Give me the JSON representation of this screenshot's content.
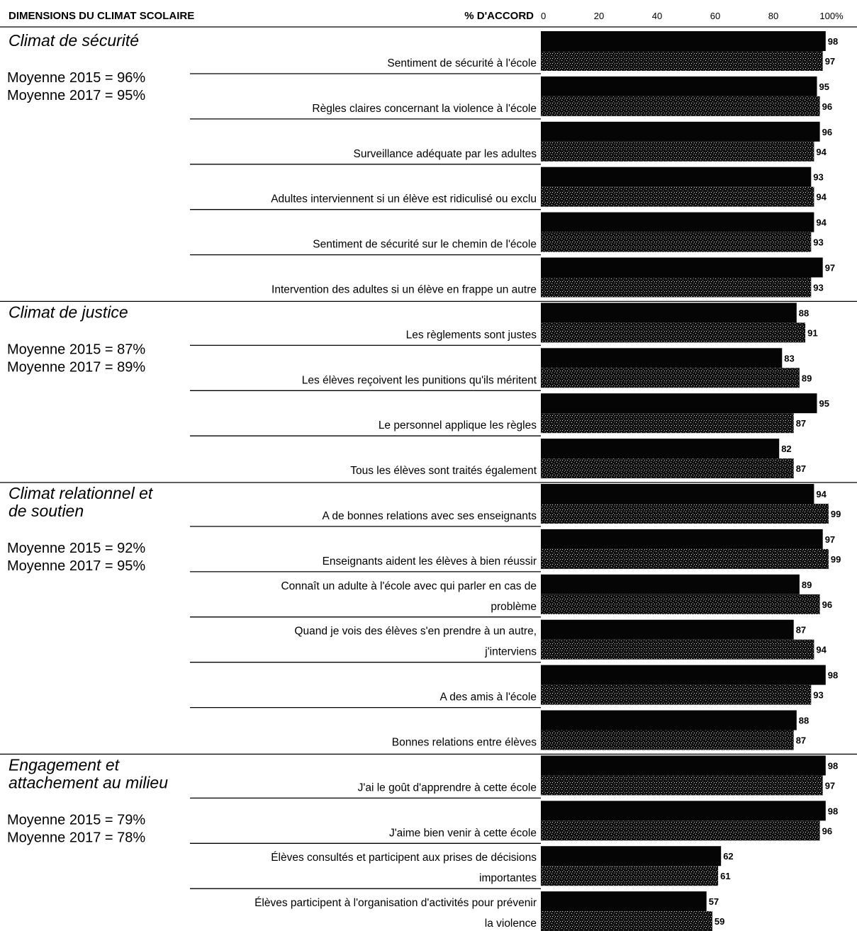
{
  "chart_data": {
    "type": "bar",
    "orientation": "horizontal",
    "title": "DIMENSIONS DU CLIMAT SCOLAIRE",
    "xlabel": "% D'ACCORD",
    "xlim": [
      0,
      100
    ],
    "xticks": [
      "0",
      "20",
      "40",
      "60",
      "80",
      "100%"
    ],
    "series_colors": {
      "2015": "#050505",
      "2017": "#3a3a3a"
    },
    "legend": "none",
    "categories": [
      {
        "name": "Climat de sécurité",
        "mean_2015": "Moyenne 2015 = 96%",
        "mean_2017": "Moyenne 2017 = 95%",
        "items": [
          {
            "label": [
              "Sentiment de sécurité à l'école"
            ],
            "v2015": 98,
            "v2017": 97
          },
          {
            "label": [
              "Règles claires concernant la violence à l'école"
            ],
            "v2015": 95,
            "v2017": 96
          },
          {
            "label": [
              "Surveillance adéquate par les adultes"
            ],
            "v2015": 96,
            "v2017": 94
          },
          {
            "label": [
              "Adultes interviennent si un élève est ridiculisé ou exclu"
            ],
            "v2015": 93,
            "v2017": 94
          },
          {
            "label": [
              "Sentiment de sécurité sur le chemin de l'école"
            ],
            "v2015": 94,
            "v2017": 93
          },
          {
            "label": [
              "Intervention des adultes si un élève en frappe un autre"
            ],
            "v2015": 97,
            "v2017": 93
          }
        ]
      },
      {
        "name": "Climat de justice",
        "mean_2015": "Moyenne 2015 = 87%",
        "mean_2017": "Moyenne 2017 = 89%",
        "items": [
          {
            "label": [
              "Les règlements sont justes"
            ],
            "v2015": 88,
            "v2017": 91
          },
          {
            "label": [
              "Les élèves reçoivent les punitions qu'ils méritent"
            ],
            "v2015": 83,
            "v2017": 89
          },
          {
            "label": [
              "Le personnel applique les règles"
            ],
            "v2015": 95,
            "v2017": 87
          },
          {
            "label": [
              "Tous les élèves sont traités également"
            ],
            "v2015": 82,
            "v2017": 87
          }
        ]
      },
      {
        "name": "Climat relationnel et de soutien",
        "name_lines": [
          "Climat relationnel et",
          "de soutien"
        ],
        "mean_2015": "Moyenne 2015 = 92%",
        "mean_2017": "Moyenne 2017 = 95%",
        "items": [
          {
            "label": [
              "A de bonnes relations avec ses enseignants"
            ],
            "v2015": 94,
            "v2017": 99
          },
          {
            "label": [
              "Enseignants aident les élèves à bien réussir"
            ],
            "v2015": 97,
            "v2017": 99
          },
          {
            "label": [
              "Connaît un adulte à l'école avec qui parler en cas de",
              "problème"
            ],
            "v2015": 89,
            "v2017": 96
          },
          {
            "label": [
              "Quand je vois des élèves s'en prendre à un autre,",
              "j'interviens"
            ],
            "v2015": 87,
            "v2017": 94
          },
          {
            "label": [
              "A des amis à l'école"
            ],
            "v2015": 98,
            "v2017": 93
          },
          {
            "label": [
              "Bonnes relations entre élèves"
            ],
            "v2015": 88,
            "v2017": 87
          }
        ]
      },
      {
        "name": "Engagement et attachement au milieu",
        "name_lines": [
          "Engagement et",
          "attachement au milieu"
        ],
        "mean_2015": "Moyenne 2015 = 79%",
        "mean_2017": "Moyenne 2017 = 78%",
        "items": [
          {
            "label": [
              "J'ai le goût d'apprendre à cette école"
            ],
            "v2015": 98,
            "v2017": 97
          },
          {
            "label": [
              "J'aime bien venir à cette école"
            ],
            "v2015": 98,
            "v2017": 96
          },
          {
            "label": [
              "Élèves consultés et participent aux prises de décisions",
              "importantes"
            ],
            "v2015": 62,
            "v2017": 61
          },
          {
            "label": [
              "Élèves participent à l'organisation d'activités pour prévenir",
              "la violence"
            ],
            "v2015": 57,
            "v2017": 59
          }
        ]
      }
    ]
  }
}
